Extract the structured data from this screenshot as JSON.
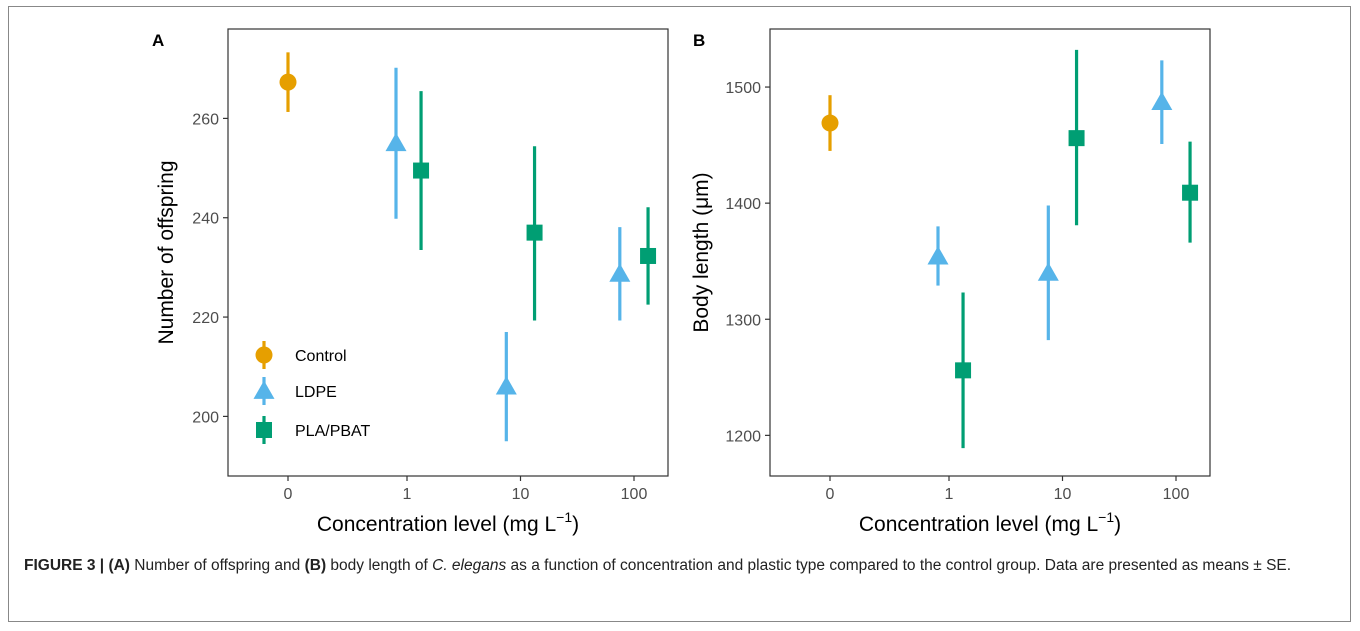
{
  "figure": {
    "caption": {
      "lead": "FIGURE 3 | ",
      "a_tag": "(A)",
      "part1": " Number of offspring and ",
      "b_tag": "(B)",
      "part2": " body length of ",
      "species": "C. elegans",
      "part3": " as a function of concentration and plastic type compared to the control group. Data are presented as means ± SE."
    }
  },
  "chart_data": [
    {
      "type": "scatter",
      "panel_label": "A",
      "xlabel": "Concentration level (mg L",
      "xlabel_exponent": "−1",
      "xlabel_close": ")",
      "ylabel": "Number of offspring",
      "categories": [
        "0",
        "1",
        "10",
        "100"
      ],
      "ylim": [
        188,
        278
      ],
      "yticks": [
        200,
        220,
        240,
        260
      ],
      "grid": false,
      "legend_position": "bottom-left",
      "series": [
        {
          "name": "Control",
          "color": "#E69F00",
          "marker": "circle",
          "points": [
            {
              "x": 0,
              "mean": 267.3,
              "lo": 261.3,
              "hi": 273.3
            }
          ]
        },
        {
          "name": "LDPE",
          "color": "#56B4E9",
          "marker": "triangle",
          "points": [
            {
              "x": 0.8,
              "mean": 255.0,
              "lo": 239.8,
              "hi": 270.2
            },
            {
              "x": 7.5,
              "mean": 206.0,
              "lo": 195.0,
              "hi": 217.0
            },
            {
              "x": 75,
              "mean": 228.7,
              "lo": 219.3,
              "hi": 238.1
            }
          ]
        },
        {
          "name": "PLA/PBAT",
          "color": "#009E73",
          "marker": "square",
          "points": [
            {
              "x": 1.33,
              "mean": 249.5,
              "lo": 233.5,
              "hi": 265.5
            },
            {
              "x": 13.3,
              "mean": 237.0,
              "lo": 219.3,
              "hi": 254.4
            },
            {
              "x": 133,
              "mean": 232.3,
              "lo": 222.5,
              "hi": 242.1
            }
          ]
        }
      ]
    },
    {
      "type": "scatter",
      "panel_label": "B",
      "xlabel": "Concentration level (mg L",
      "xlabel_exponent": "−1",
      "xlabel_close": ")",
      "ylabel": "Body length (μm)",
      "categories": [
        "0",
        "1",
        "10",
        "100"
      ],
      "ylim": [
        1165,
        1550
      ],
      "yticks": [
        1200,
        1300,
        1400,
        1500
      ],
      "grid": false,
      "series": [
        {
          "name": "Control",
          "color": "#E69F00",
          "marker": "circle",
          "points": [
            {
              "x": 0,
              "mean": 1469,
              "lo": 1445,
              "hi": 1493
            }
          ]
        },
        {
          "name": "LDPE",
          "color": "#56B4E9",
          "marker": "triangle",
          "points": [
            {
              "x": 0.8,
              "mean": 1354,
              "lo": 1329,
              "hi": 1380
            },
            {
              "x": 7.5,
              "mean": 1340,
              "lo": 1282,
              "hi": 1398
            },
            {
              "x": 75,
              "mean": 1487,
              "lo": 1451,
              "hi": 1523
            }
          ]
        },
        {
          "name": "PLA/PBAT",
          "color": "#009E73",
          "marker": "square",
          "points": [
            {
              "x": 1.33,
              "mean": 1256,
              "lo": 1189,
              "hi": 1323
            },
            {
              "x": 13.3,
              "mean": 1456,
              "lo": 1381,
              "hi": 1532
            },
            {
              "x": 133,
              "mean": 1409,
              "lo": 1366,
              "hi": 1453
            }
          ]
        }
      ]
    }
  ]
}
